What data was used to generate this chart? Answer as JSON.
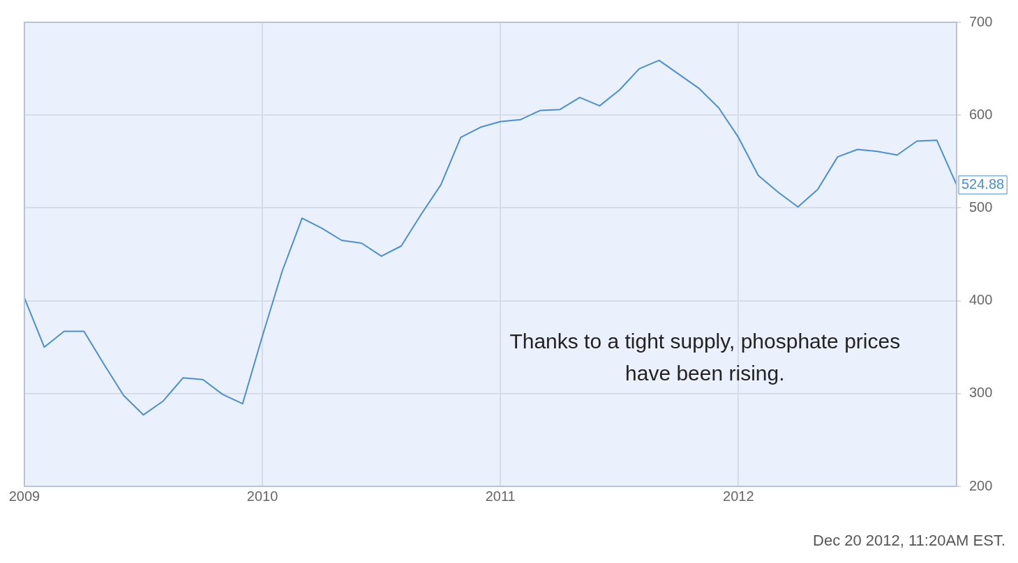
{
  "chart_data": {
    "type": "line",
    "x": [
      "2009-01",
      "2009-02",
      "2009-03",
      "2009-04",
      "2009-05",
      "2009-06",
      "2009-07",
      "2009-08",
      "2009-09",
      "2009-10",
      "2009-11",
      "2009-12",
      "2010-01",
      "2010-02",
      "2010-03",
      "2010-04",
      "2010-05",
      "2010-06",
      "2010-07",
      "2010-08",
      "2010-09",
      "2010-10",
      "2010-11",
      "2010-12",
      "2011-01",
      "2011-02",
      "2011-03",
      "2011-04",
      "2011-05",
      "2011-06",
      "2011-07",
      "2011-08",
      "2011-09",
      "2011-10",
      "2011-11",
      "2011-12",
      "2012-01",
      "2012-02",
      "2012-03",
      "2012-04",
      "2012-05",
      "2012-06",
      "2012-07",
      "2012-08",
      "2012-09",
      "2012-10",
      "2012-11",
      "2012-12"
    ],
    "series": [
      {
        "color": "#4a8fd1",
        "values": [
          403,
          350,
          367,
          367,
          332,
          298,
          277,
          292,
          317,
          315,
          299,
          289,
          362,
          432,
          489,
          478,
          465,
          462,
          448,
          459,
          493,
          525,
          576,
          587,
          593,
          595,
          605,
          606,
          619,
          610,
          627,
          650,
          659,
          644,
          629,
          608,
          576,
          535,
          517,
          501,
          520,
          555,
          563,
          561,
          557,
          572,
          573,
          524.88
        ]
      }
    ],
    "xlim": [
      "2009-01",
      "2012-12"
    ],
    "xticks": [
      "2009",
      "2010",
      "2011",
      "2012"
    ],
    "ylim": [
      200,
      700
    ],
    "yticks": [
      200,
      300,
      400,
      500,
      600,
      700
    ],
    "grid": true,
    "marker": "none",
    "line_style": "solid",
    "legend": false,
    "annotations": [
      "Thanks to a tight supply, phosphate prices have been rising.",
      {
        "text": "524.88",
        "x": "2012-12",
        "y": 524.88
      },
      "Dec 20 2012, 11:20AM EST."
    ]
  }
}
